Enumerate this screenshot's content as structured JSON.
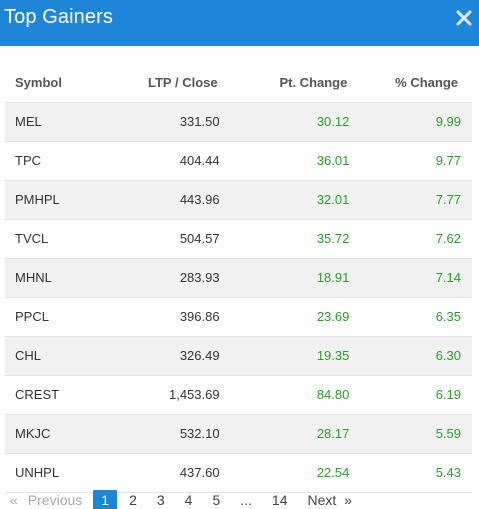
{
  "modal": {
    "title": "Top Gainers",
    "close_icon": "close-icon",
    "close_label": "✖"
  },
  "table": {
    "headers": {
      "symbol": "Symbol",
      "ltp": "LTP / Close",
      "pt_change": "Pt. Change",
      "pct_change": "% Change"
    },
    "rows": [
      {
        "symbol": "MEL",
        "ltp": "331.50",
        "pt_change": "30.12",
        "pct_change": "9.99"
      },
      {
        "symbol": "TPC",
        "ltp": "404.44",
        "pt_change": "36.01",
        "pct_change": "9.77"
      },
      {
        "symbol": "PMHPL",
        "ltp": "443.96",
        "pt_change": "32.01",
        "pct_change": "7.77"
      },
      {
        "symbol": "TVCL",
        "ltp": "504.57",
        "pt_change": "35.72",
        "pct_change": "7.62"
      },
      {
        "symbol": "MHNL",
        "ltp": "283.93",
        "pt_change": "18.91",
        "pct_change": "7.14"
      },
      {
        "symbol": "PPCL",
        "ltp": "396.86",
        "pt_change": "23.69",
        "pct_change": "6.35"
      },
      {
        "symbol": "CHL",
        "ltp": "326.49",
        "pt_change": "19.35",
        "pct_change": "6.30"
      },
      {
        "symbol": "CREST",
        "ltp": "1,453.69",
        "pt_change": "84.80",
        "pct_change": "6.19"
      },
      {
        "symbol": "MKJC",
        "ltp": "532.10",
        "pt_change": "28.17",
        "pct_change": "5.59"
      },
      {
        "symbol": "UNHPL",
        "ltp": "437.60",
        "pt_change": "22.54",
        "pct_change": "5.43"
      }
    ]
  },
  "pagination": {
    "prev_arrow": "«",
    "prev_label": "Previous",
    "pages": [
      "1",
      "2",
      "3",
      "4",
      "5"
    ],
    "active_page": "1",
    "ellipsis": "...",
    "last_page": "14",
    "next_label": "Next",
    "next_arrow": "»"
  },
  "colors": {
    "header_bg": "#1e86d8",
    "positive": "#2b9a2b",
    "stripe": "#f1f1f1"
  }
}
